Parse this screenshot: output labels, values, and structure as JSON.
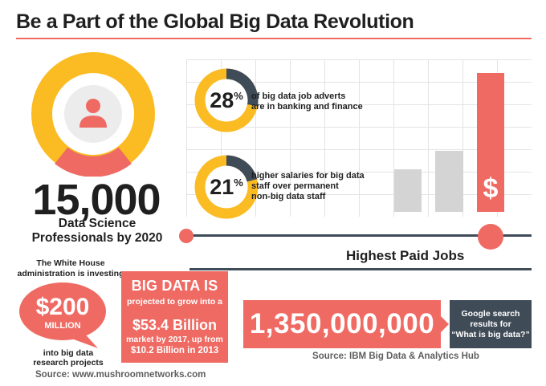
{
  "title": "Be a Part of the Global Big Data Revolution",
  "professionals": {
    "number": "15,000",
    "caption_line1": "Data Science",
    "caption_line2": "Professionals by 2020"
  },
  "stats": [
    {
      "percent": "28",
      "symbol": "%",
      "value_fraction": 0.28,
      "line1": "of big data job adverts",
      "line2": "are in banking and finance",
      "line3": ""
    },
    {
      "percent": "21",
      "symbol": "%",
      "value_fraction": 0.21,
      "line1": "higher salaries for big data",
      "line2": "staff over permanent",
      "line3": "non-big data staff"
    }
  ],
  "salary_chart": {
    "dollar_symbol": "$",
    "bar_levels": [
      0.28,
      0.4,
      0.91
    ]
  },
  "highest_paid_title": "Highest Paid Jobs",
  "white_house": {
    "intro_line1": "The White House",
    "intro_line2": "administration is investing",
    "amount": "$200",
    "unit": "MILLION",
    "outro_line1": "into big data",
    "outro_line2": "research projects"
  },
  "big_data_box": {
    "heading": "BIG DATA IS",
    "line1": "projected to grow into a",
    "big_value": "$53.4 Billion",
    "line2": "market by 2017, up from",
    "line3": "$10.2 Billion in 2013"
  },
  "google": {
    "count": "1,350,000,000",
    "line1": "Google search",
    "line2": "results for",
    "line3": "“What is big data?”"
  },
  "source_ibm": "Source: IBM Big Data & Analytics Hub",
  "source_mushroom": "Source: www.mushroomnetworks.com",
  "colors": {
    "coral": "#ef6a63",
    "yellow": "#fbbb22",
    "slate": "#3f4b57",
    "gray_bar": "#d4d4d4"
  },
  "icons": [
    "user-icon",
    "dollar-icon"
  ]
}
